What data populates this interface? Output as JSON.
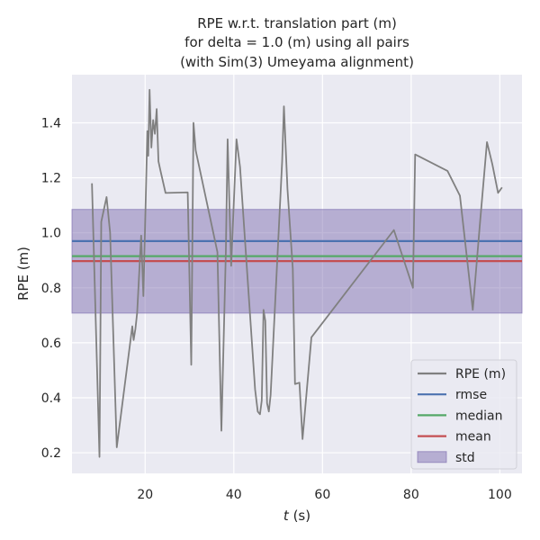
{
  "chart_data": {
    "type": "line",
    "title_lines": [
      "RPE w.r.t. translation part (m)",
      "for delta = 1.0 (m) using all pairs",
      "(with Sim(3) Umeyama alignment)"
    ],
    "xlabel_italic": "t",
    "xlabel_rest": " (s)",
    "ylabel": "RPE (m)",
    "xlim": [
      3.5,
      105
    ],
    "ylim": [
      0.125,
      1.575
    ],
    "xticks": [
      20,
      40,
      60,
      80,
      100
    ],
    "yticks": [
      0.2,
      0.4,
      0.6,
      0.8,
      1.0,
      1.2,
      1.4
    ],
    "grid": true,
    "legend_position": "lower-right",
    "colors": {
      "rpe": "#808080",
      "rmse": "#4c72b0",
      "median": "#55a868",
      "mean": "#c44e52",
      "std": "#8172b2",
      "background": "#eaeaf2",
      "grid": "#ffffff"
    },
    "series": [
      {
        "name": "RPE (m)",
        "x": [
          8.0,
          9.7,
          10.1,
          11.3,
          12.1,
          13.6,
          17.1,
          17.4,
          17.8,
          18.2,
          19.1,
          19.6,
          20.1,
          20.5,
          20.7,
          21.0,
          21.4,
          21.8,
          22.2,
          22.6,
          23.0,
          23.4,
          24.6,
          29.6,
          30.4,
          30.9,
          31.4,
          36.3,
          37.2,
          38.2,
          38.6,
          39.4,
          40.6,
          41.4,
          44.8,
          45.4,
          45.9,
          46.3,
          46.7,
          47.1,
          47.5,
          47.9,
          48.3,
          50.9,
          51.3,
          52.1,
          53.3,
          53.8,
          54.8,
          55.5,
          57.5,
          76.1,
          80.4,
          80.9,
          88.2,
          91.0,
          93.9,
          95.6,
          97.1,
          98.3,
          99.6,
          100.5
        ],
        "y": [
          1.18,
          0.185,
          1.04,
          1.13,
          1.0,
          0.22,
          0.66,
          0.61,
          0.65,
          0.71,
          0.99,
          0.77,
          1.1,
          1.37,
          1.28,
          1.52,
          1.31,
          1.41,
          1.36,
          1.45,
          1.26,
          1.23,
          1.145,
          1.147,
          0.52,
          1.4,
          1.3,
          0.93,
          0.28,
          0.93,
          1.34,
          0.88,
          1.34,
          1.24,
          0.43,
          0.35,
          0.34,
          0.39,
          0.72,
          0.68,
          0.38,
          0.35,
          0.41,
          1.26,
          1.46,
          1.16,
          0.87,
          0.45,
          0.455,
          0.25,
          0.62,
          1.01,
          0.8,
          1.285,
          1.225,
          1.135,
          0.72,
          1.05,
          1.33,
          1.25,
          1.145,
          1.165
        ]
      }
    ],
    "stats": {
      "rmse": 0.97,
      "median": 0.915,
      "mean": 0.897,
      "std_low": 0.708,
      "std_high": 1.085
    },
    "legend": [
      {
        "key": "rpe",
        "label": "RPE (m)",
        "kind": "line"
      },
      {
        "key": "rmse",
        "label": "rmse",
        "kind": "line"
      },
      {
        "key": "median",
        "label": "median",
        "kind": "line"
      },
      {
        "key": "mean",
        "label": "mean",
        "kind": "line"
      },
      {
        "key": "std",
        "label": "std",
        "kind": "patch"
      }
    ]
  }
}
